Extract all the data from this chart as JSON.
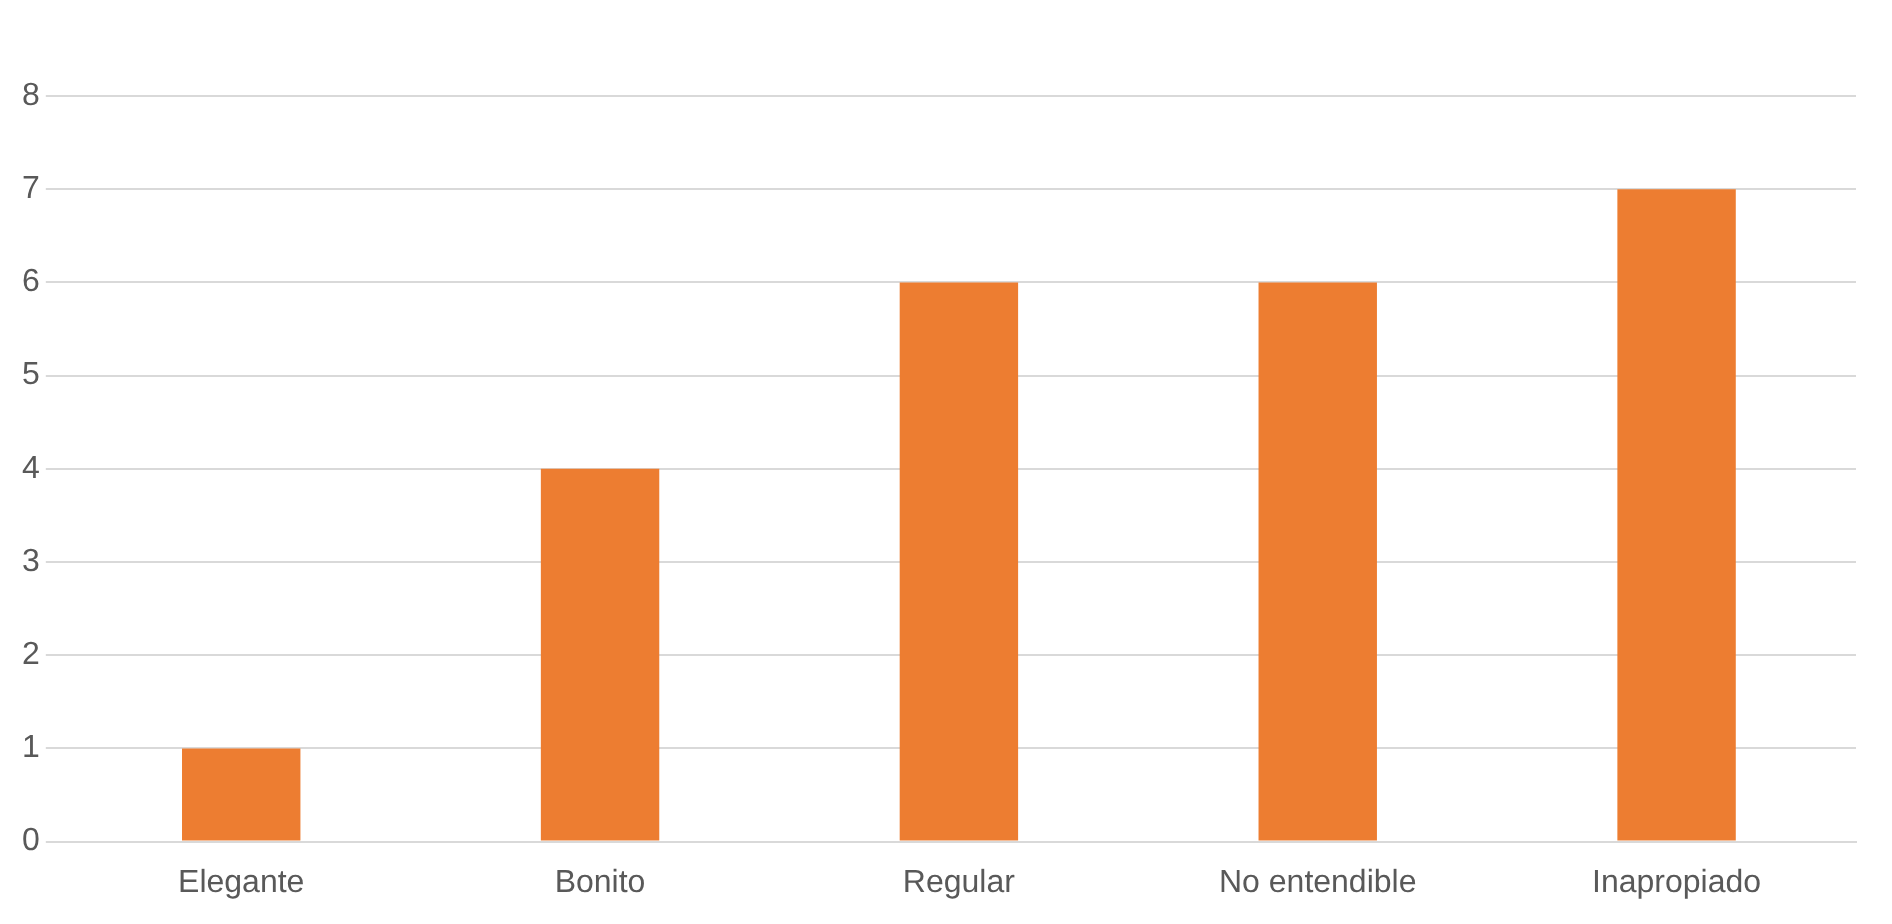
{
  "chart_data": {
    "type": "bar",
    "categories": [
      "Elegante",
      "Bonito",
      "Regular",
      "No entendible",
      "Inapropiado"
    ],
    "series": [
      {
        "color": "#ed7d31",
        "values": [
          1,
          4,
          6,
          6,
          7
        ]
      }
    ],
    "ylim": [
      0,
      8
    ],
    "yticks": [
      0,
      1,
      2,
      3,
      4,
      5,
      6,
      7,
      8
    ],
    "grid": "y",
    "legend": false
  }
}
